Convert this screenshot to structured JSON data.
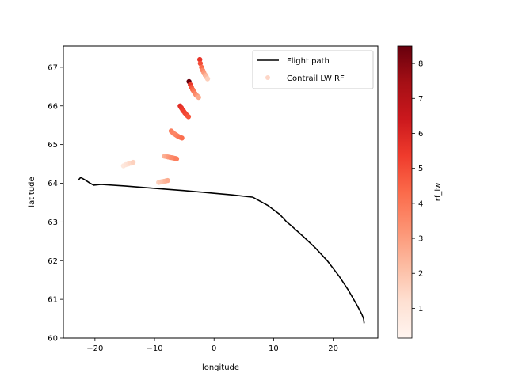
{
  "chart_data": {
    "type": "scatter",
    "xlabel": "longitude",
    "ylabel": "latitude",
    "xlim": [
      -25.3,
      27.5
    ],
    "ylim": [
      60.0,
      67.55
    ],
    "xticks": [
      -20,
      -10,
      0,
      10,
      20
    ],
    "yticks": [
      60,
      61,
      62,
      63,
      64,
      65,
      66,
      67
    ],
    "grid": false,
    "legend": {
      "placement": "top-right",
      "entries": [
        "Flight path",
        "Contrail LW RF"
      ]
    },
    "colorbar": {
      "label": "rf_lw",
      "colormap": "Reds",
      "range": [
        0.15,
        8.5
      ],
      "ticks": [
        1,
        2,
        3,
        4,
        5,
        6,
        7,
        8
      ]
    },
    "series": [
      {
        "name": "Flight path",
        "type": "line",
        "color": "#000000",
        "points": [
          [
            -22.8,
            64.08
          ],
          [
            -22.4,
            64.15
          ],
          [
            -21.6,
            64.08
          ],
          [
            -20.8,
            64.0
          ],
          [
            -20.2,
            63.95
          ],
          [
            -19.0,
            63.97
          ],
          [
            -15.0,
            63.93
          ],
          [
            -10.0,
            63.87
          ],
          [
            -5.0,
            63.81
          ],
          [
            0.0,
            63.74
          ],
          [
            3.0,
            63.7
          ],
          [
            6.5,
            63.64
          ],
          [
            9.0,
            63.43
          ],
          [
            11.0,
            63.2
          ],
          [
            12.2,
            63.0
          ],
          [
            13.0,
            62.9
          ],
          [
            15.0,
            62.62
          ],
          [
            17.0,
            62.33
          ],
          [
            19.0,
            62.0
          ],
          [
            21.0,
            61.6
          ],
          [
            22.5,
            61.25
          ],
          [
            24.0,
            60.85
          ],
          [
            24.8,
            60.62
          ],
          [
            25.1,
            60.5
          ],
          [
            25.2,
            60.38
          ]
        ]
      },
      {
        "name": "Contrail LW RF",
        "type": "scatter",
        "x": [
          -2.4,
          -2.3,
          -2.1,
          -1.9,
          -1.7,
          -1.5,
          -1.3,
          -1.1,
          -4.2,
          -4.0,
          -3.8,
          -3.6,
          -3.4,
          -3.2,
          -3.0,
          -2.8,
          -2.6,
          -5.7,
          -5.5,
          -5.3,
          -5.1,
          -4.9,
          -4.7,
          -4.5,
          -4.3,
          -7.2,
          -7.0,
          -6.8,
          -6.6,
          -6.4,
          -6.2,
          -6.0,
          -5.7,
          -5.4,
          -8.3,
          -8.0,
          -7.7,
          -7.4,
          -7.1,
          -6.8,
          -6.5,
          -6.3,
          -9.3,
          -9.0,
          -8.7,
          -8.4,
          -8.1,
          -7.8,
          -15.2,
          -14.8,
          -14.4,
          -14.0,
          -13.6
        ],
        "y": [
          67.2,
          67.1,
          67.0,
          66.92,
          66.85,
          66.8,
          66.75,
          66.7,
          66.63,
          66.55,
          66.48,
          66.42,
          66.37,
          66.32,
          66.28,
          66.25,
          66.22,
          66.0,
          65.95,
          65.9,
          65.86,
          65.82,
          65.78,
          65.75,
          65.72,
          65.35,
          65.32,
          65.29,
          65.27,
          65.25,
          65.23,
          65.21,
          65.19,
          65.17,
          64.7,
          64.69,
          64.68,
          64.67,
          64.66,
          64.65,
          64.64,
          64.63,
          64.02,
          64.03,
          64.04,
          64.05,
          64.06,
          64.07,
          64.45,
          64.48,
          64.5,
          64.52,
          64.54
        ],
        "values": [
          5.6,
          5.0,
          4.3,
          3.6,
          3.1,
          2.6,
          2.2,
          1.7,
          8.5,
          5.5,
          4.8,
          4.4,
          4.0,
          3.7,
          3.4,
          3.1,
          2.7,
          5.8,
          5.6,
          5.4,
          5.3,
          5.2,
          5.1,
          5.0,
          4.8,
          3.8,
          3.7,
          3.7,
          3.6,
          3.6,
          3.7,
          3.8,
          4.0,
          4.2,
          2.5,
          2.7,
          3.0,
          3.2,
          3.4,
          3.5,
          3.7,
          3.8,
          1.6,
          1.8,
          2.0,
          2.2,
          2.4,
          2.6,
          0.8,
          1.0,
          1.2,
          1.4,
          1.6
        ]
      }
    ]
  }
}
